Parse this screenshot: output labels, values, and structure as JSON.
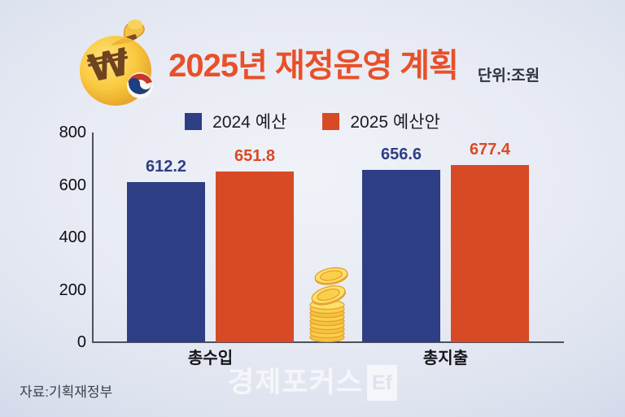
{
  "header": {
    "title": "2025년 재정운영 계획",
    "unit_label": "단위:조원"
  },
  "icons": {
    "money_bag": "money-bag-with-won-symbol-and-korea-gov-emblem",
    "coins": "stack-of-gold-coins"
  },
  "colors": {
    "series_2024": "#2e3e84",
    "series_2025": "#d84a25",
    "title": "#e8502a",
    "axis": "#4c515d",
    "background_center": "#f0f2f8",
    "background_edge": "#ccd3e6",
    "bag_yellow": "#f8c23c",
    "coin_gold": "#fbcf4a"
  },
  "chart_data": {
    "type": "bar",
    "title": "2025년 재정운영 계획",
    "unit": "조원",
    "categories": [
      "총수입",
      "총지출"
    ],
    "series": [
      {
        "name": "2024 예산",
        "color": "#2e3e84",
        "values": [
          612.2,
          656.6
        ]
      },
      {
        "name": "2025 예산안",
        "color": "#d84a25",
        "values": [
          651.8,
          677.4
        ]
      }
    ],
    "ylim": [
      0,
      800
    ],
    "yticks": [
      0,
      200,
      400,
      600,
      800
    ],
    "grid": false,
    "legend_position": "top",
    "value_labels": true
  },
  "footer": {
    "source": "자료:기획재정부",
    "watermark_text": "경제포커스",
    "watermark_logo": "Ef"
  }
}
